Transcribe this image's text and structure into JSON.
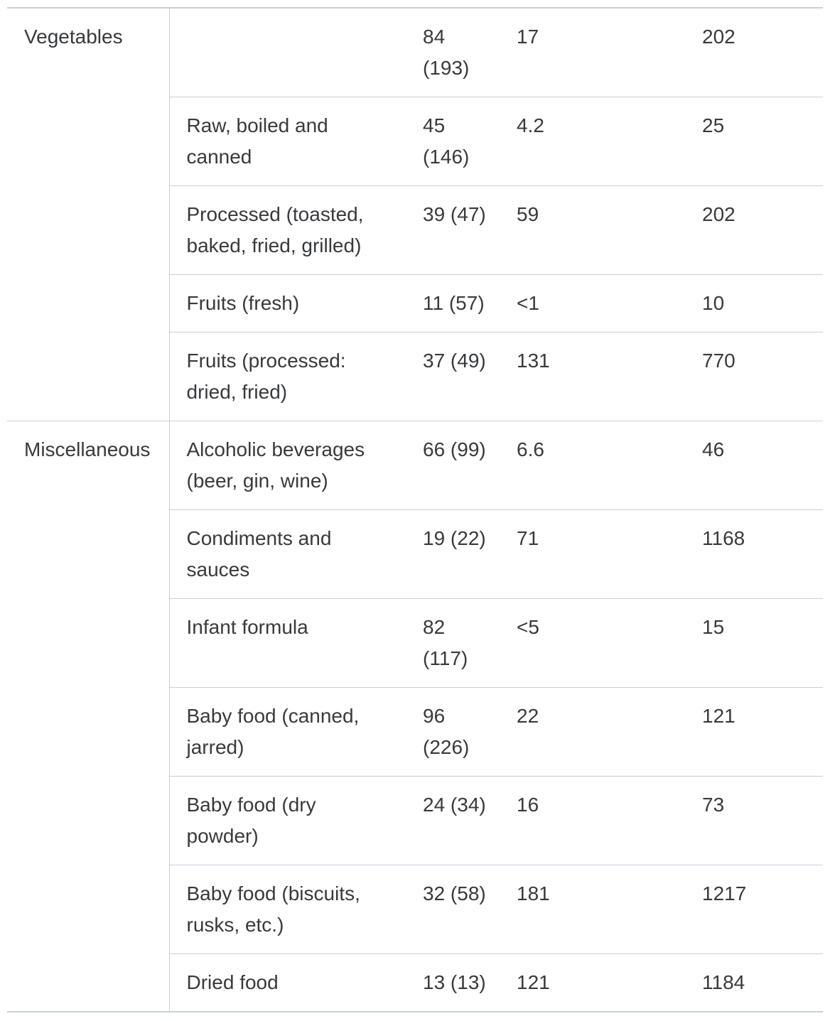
{
  "colors": {
    "text": "#373a3d",
    "border": "#c9cfd9",
    "background": "#ffffff"
  },
  "table": {
    "groups": [
      {
        "category": "Vegetables",
        "rows": [
          {
            "label": "",
            "values": [
              "84 (193)",
              "17",
              "202"
            ]
          },
          {
            "label": "Raw, boiled and\ncanned",
            "values": [
              "45 (146)",
              "4.2",
              "25"
            ]
          },
          {
            "label": "Processed (toasted,\nbaked, fried, grilled)",
            "values": [
              "39 (47)",
              "59",
              "202"
            ]
          },
          {
            "label": "Fruits (fresh)",
            "values": [
              "11 (57)",
              "<1",
              "10"
            ]
          },
          {
            "label": "Fruits (processed:\ndried, fried)",
            "values": [
              "37 (49)",
              "131",
              "770"
            ]
          }
        ]
      },
      {
        "category": "Miscellaneous",
        "rows": [
          {
            "label": "Alcoholic beverages\n(beer, gin, wine)",
            "values": [
              "66 (99)",
              "6.6",
              "46"
            ]
          },
          {
            "label": "Condiments and\nsauces",
            "values": [
              "19 (22)",
              "71",
              "1168"
            ]
          },
          {
            "label": "Infant formula",
            "values": [
              "82 (117)",
              "<5",
              "15"
            ]
          },
          {
            "label": "Baby food (canned,\njarred)",
            "values": [
              "96 (226)",
              "22",
              "121"
            ]
          },
          {
            "label": "Baby food (dry\npowder)",
            "values": [
              "24 (34)",
              "16",
              "73"
            ]
          },
          {
            "label": "Baby food (biscuits,\nrusks, etc.)",
            "values": [
              "32 (58)",
              "181",
              "1217"
            ]
          },
          {
            "label": "Dried food",
            "values": [
              "13 (13)",
              "121",
              "1184"
            ]
          }
        ]
      }
    ]
  }
}
